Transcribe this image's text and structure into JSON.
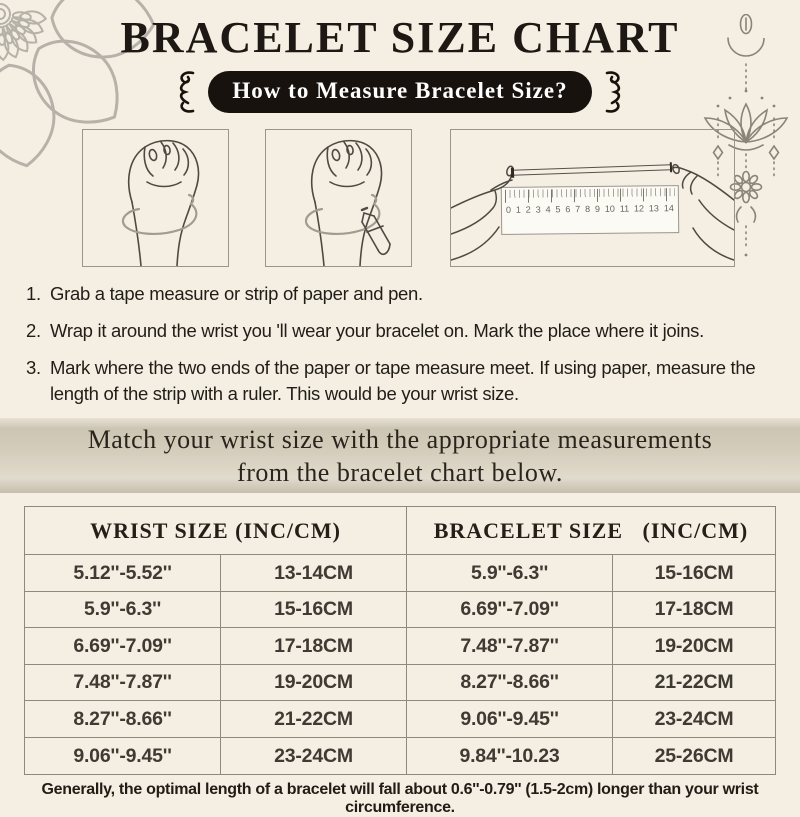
{
  "header": {
    "title": "BRACELET SIZE CHART",
    "subtitle": "How to Measure Bracelet Size?"
  },
  "instructions": [
    {
      "num": "1.",
      "text": "Grab a tape measure or strip of paper and pen."
    },
    {
      "num": "2.",
      "text": "Wrap it around the wrist you 'll wear your bracelet on. Mark the place where it joins."
    },
    {
      "num": "3.",
      "text": "Mark where the two ends of the paper or tape measure meet. If using paper, measure the length of the strip with a ruler. This would be your wrist size."
    }
  ],
  "banner": {
    "line1": "Match your wrist size with the appropriate measurements",
    "line2": "from the bracelet chart below."
  },
  "size_table": {
    "headers": [
      "WRIST SIZE (INC/CM)",
      "BRACELET SIZE   (INC/CM)"
    ],
    "rows": [
      [
        "5.12''-5.52''",
        "13-14CM",
        "5.9''-6.3''",
        "15-16CM"
      ],
      [
        "5.9''-6.3''",
        "15-16CM",
        "6.69''-7.09''",
        "17-18CM"
      ],
      [
        "6.69''-7.09''",
        "17-18CM",
        "7.48''-7.87''",
        "19-20CM"
      ],
      [
        "7.48''-7.87''",
        "19-20CM",
        "8.27''-8.66''",
        "21-22CM"
      ],
      [
        "8.27''-8.66''",
        "21-22CM",
        "9.06''-9.45''",
        "23-24CM"
      ],
      [
        "9.06''-9.45''",
        "23-24CM",
        "9.84''-10.23",
        "25-26CM"
      ]
    ]
  },
  "ruler": {
    "numbers": [
      "0",
      "1",
      "2",
      "3",
      "4",
      "5",
      "6",
      "7",
      "8",
      "9",
      "10",
      "11",
      "12",
      "13",
      "14"
    ]
  },
  "footer": {
    "note": "Generally, the optimal length of a bracelet will fall about 0.6''-0.79'' (1.5-2cm) longer than your wrist circumference."
  },
  "colors": {
    "background": "#f4efe2",
    "pill_black": "#17120d",
    "banner_tan": "#d6cebd",
    "table_border": "#8f897d",
    "line_art": "#4e4942",
    "tape_gray": "#a29b8f",
    "ornament_gray": "#8b8377",
    "mandala_gray": "#b6b2a9"
  }
}
